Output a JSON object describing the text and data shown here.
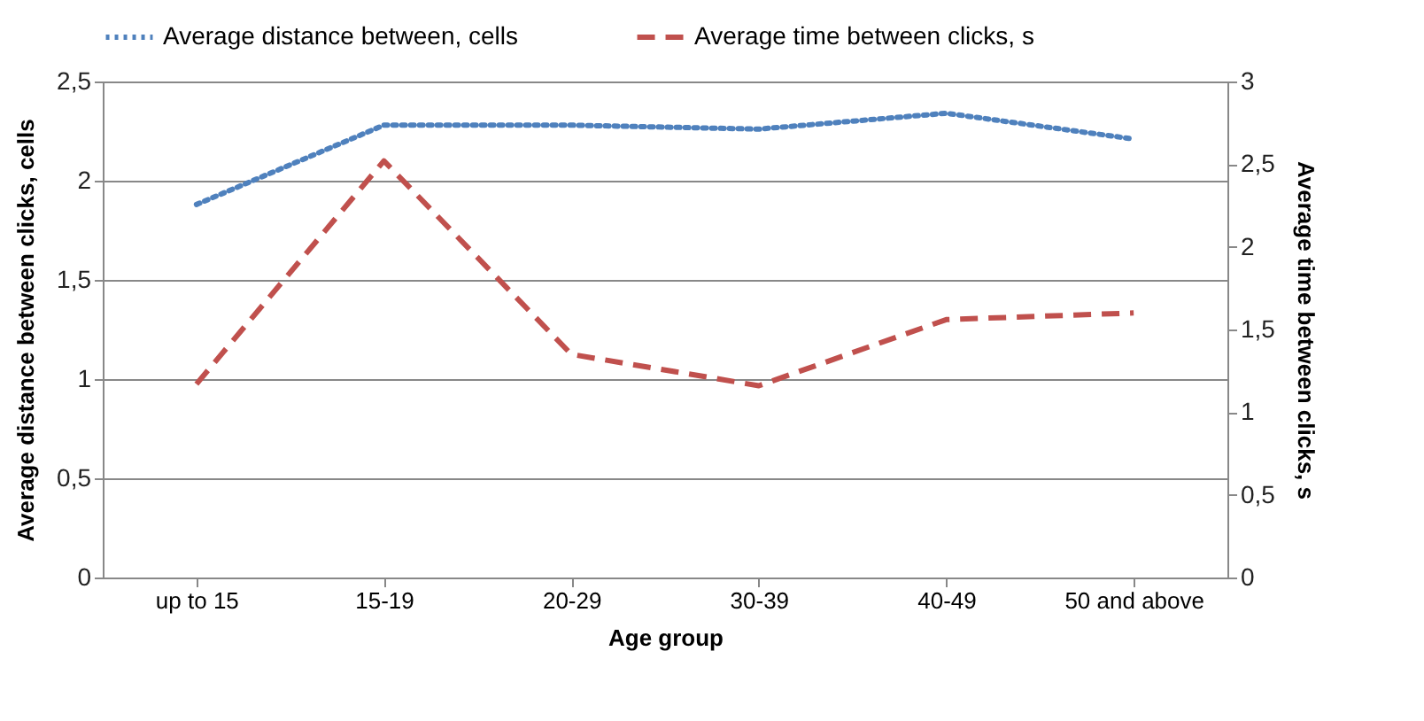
{
  "chart_data": {
    "type": "line",
    "xlabel": "Age group",
    "ylabel": "Average distance between clicks, cells",
    "y2label": "Average time between clicks, s",
    "categories": [
      "up to 15",
      "15-19",
      "20-29",
      "30-39",
      "40-49",
      "50 and above"
    ],
    "series": [
      {
        "name": "Average distance between, cells",
        "color": "#4f81bd",
        "line_style": "dotted",
        "values": [
          1.88,
          2.28,
          2.28,
          2.26,
          2.34,
          2.21
        ]
      },
      {
        "name": "Average time between clicks, s",
        "color": "#c0504d",
        "line_style": "dashed",
        "axis": "y2",
        "values": [
          1.17,
          2.52,
          1.35,
          1.16,
          1.56,
          1.6
        ]
      }
    ],
    "ylim": [
      0,
      2.5
    ],
    "yticks": [
      {
        "value": 0,
        "label": "0"
      },
      {
        "value": 0.5,
        "label": "0,5"
      },
      {
        "value": 1,
        "label": "1"
      },
      {
        "value": 1.5,
        "label": "1,5"
      },
      {
        "value": 2,
        "label": "2"
      },
      {
        "value": 2.5,
        "label": "2,5"
      }
    ],
    "y2lim": [
      0,
      3
    ],
    "y2ticks": [
      {
        "value": 0,
        "label": "0"
      },
      {
        "value": 0.5,
        "label": "0,5"
      },
      {
        "value": 1,
        "label": "1"
      },
      {
        "value": 1.5,
        "label": "1,5"
      },
      {
        "value": 2,
        "label": "2"
      },
      {
        "value": 2.5,
        "label": "2,5"
      },
      {
        "value": 3,
        "label": "3"
      }
    ],
    "grid": "y",
    "legend": "top",
    "marker": "none"
  }
}
